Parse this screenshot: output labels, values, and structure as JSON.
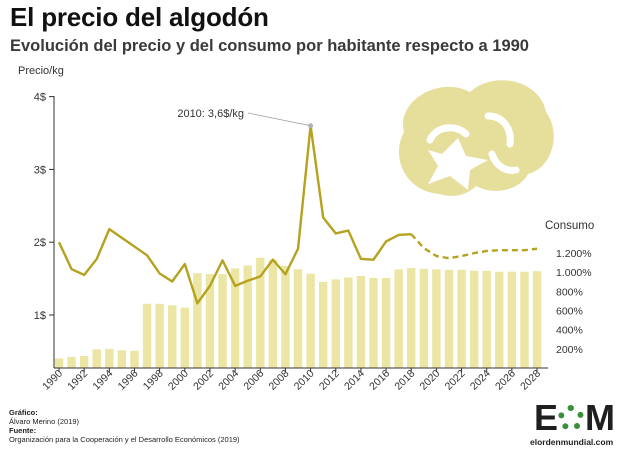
{
  "header": {
    "title": "El precio del algodón",
    "subtitle": "Evolución del precio y del consumo por habitante respecto a 1990"
  },
  "footer": {
    "grafico_label": "Gráfico:",
    "grafico_value": "Álvaro Merino (2019)",
    "fuente_label": "Fuente:",
    "fuente_value": "Organización para la Cooperación y el Desarrollo Económicos (2019)"
  },
  "logo": {
    "mark_left": "E",
    "mark_right": "M",
    "url": "elordenmundial.com"
  },
  "colors": {
    "line": "#b5a21f",
    "bars": "#ece6a4",
    "cotton": "#e6df9c",
    "axis": "#333333",
    "annotation_marker": "#b3b3b3"
  },
  "icons": [
    "cotton-boll-icon"
  ],
  "chart_data": {
    "type": "bar+line",
    "ylabel_left": "Precio/kg",
    "ylabel_right": "Consumo",
    "left_ticks": [
      "1$",
      "2$",
      "3$",
      "4$"
    ],
    "left_tick_values": [
      1,
      2,
      3,
      4
    ],
    "ylim_left": [
      0.3,
      4
    ],
    "right_ticks": [
      "200%",
      "400%",
      "600%",
      "800%",
      "1.000%",
      "1.200%"
    ],
    "right_tick_values": [
      200,
      400,
      600,
      800,
      1000,
      1200
    ],
    "ylim_right": [
      0,
      1250
    ],
    "x_ticks": [
      "1990",
      "1992",
      "1994",
      "1996",
      "1998",
      "2000",
      "2002",
      "2004",
      "2006",
      "2008",
      "2010",
      "2012",
      "2014",
      "2016",
      "2018",
      "2020",
      "2022",
      "2024",
      "2026",
      "2028"
    ],
    "years": [
      1990,
      1991,
      1992,
      1993,
      1994,
      1995,
      1996,
      1997,
      1998,
      1999,
      2000,
      2001,
      2002,
      2003,
      2004,
      2005,
      2006,
      2007,
      2008,
      2009,
      2010,
      2011,
      2012,
      2013,
      2014,
      2015,
      2016,
      2017,
      2018,
      2019,
      2020,
      2021,
      2022,
      2023,
      2024,
      2025,
      2026,
      2027,
      2028
    ],
    "series": [
      {
        "name": "Consumo",
        "type": "bar",
        "axis": "right",
        "values": [
          100,
          115,
          125,
          195,
          200,
          185,
          180,
          670,
          670,
          655,
          630,
          990,
          980,
          980,
          1040,
          1070,
          1150,
          1130,
          1065,
          1030,
          985,
          900,
          925,
          945,
          960,
          940,
          940,
          1030,
          1045,
          1035,
          1030,
          1025,
          1025,
          1015,
          1015,
          1005,
          1005,
          1005,
          1010
        ]
      },
      {
        "name": "Precio",
        "type": "line",
        "axis": "left",
        "values": [
          2.0,
          1.63,
          1.55,
          1.77,
          2.18,
          2.06,
          1.94,
          1.82,
          1.57,
          1.46,
          1.7,
          1.16,
          1.4,
          1.75,
          1.4,
          1.47,
          1.53,
          1.76,
          1.56,
          1.91,
          3.6,
          2.34,
          2.12,
          2.16,
          1.77,
          1.76,
          2.01,
          2.1,
          2.11,
          1.92,
          1.81,
          1.78,
          1.81,
          1.85,
          1.88,
          1.89,
          1.89,
          1.89,
          1.91
        ],
        "projected_from": 2019
      }
    ],
    "annotations": [
      {
        "label": "2010: 3,6$/kg",
        "x": 2010,
        "y": 3.6
      }
    ],
    "grid": false,
    "legend": "none"
  }
}
